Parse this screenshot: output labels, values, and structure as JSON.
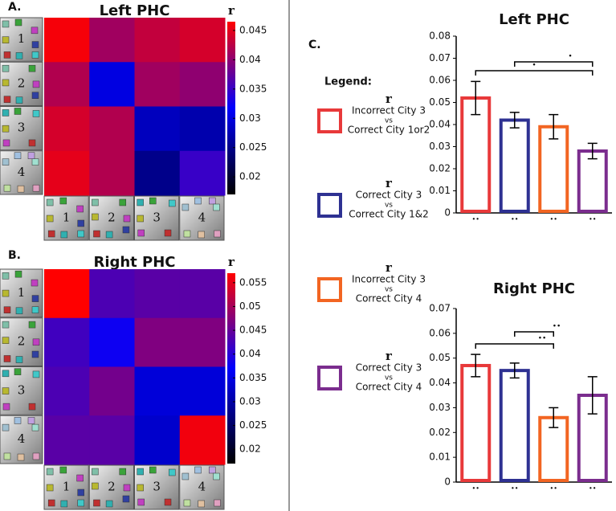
{
  "panel_labels": [
    "A.",
    "B.",
    "C."
  ],
  "legend": {
    "title": "Legend:",
    "entries": [
      {
        "symbol": "r",
        "lines": [
          "Incorrect City 3",
          "vs",
          "Correct City 1or2"
        ],
        "color": "#e8393a"
      },
      {
        "symbol": "r",
        "lines": [
          "Correct City 3",
          "vs",
          "Correct City 1&2"
        ],
        "color": "#2e3192"
      },
      {
        "symbol": "r",
        "lines": [
          "Incorrect City 3",
          "vs",
          "Correct City 4"
        ],
        "color": "#f26522"
      },
      {
        "symbol": "r",
        "lines": [
          "Correct City 3",
          "vs",
          "Correct City 4"
        ],
        "color": "#7b2d8e"
      }
    ]
  },
  "chart_data": [
    {
      "type": "heatmap",
      "title": "Left PHC",
      "rows": [
        "1",
        "2",
        "3",
        "4"
      ],
      "columns": [
        "1",
        "2",
        "3",
        "4"
      ],
      "values": [
        [
          0.046,
          0.041,
          0.043,
          0.044
        ],
        [
          0.042,
          0.03,
          0.041,
          0.04
        ],
        [
          0.044,
          0.042,
          0.028,
          0.027
        ],
        [
          0.045,
          0.042,
          0.025,
          0.035
        ]
      ],
      "colorbar_label": "r",
      "zlim": [
        0.017,
        0.0465
      ],
      "zticks": [
        0.02,
        0.025,
        0.03,
        0.035,
        0.04,
        0.045
      ],
      "colormap": [
        "#000000",
        "#0000ff",
        "#ff0000"
      ]
    },
    {
      "type": "heatmap",
      "title": "Right PHC",
      "rows": [
        "1",
        "2",
        "3",
        "4"
      ],
      "columns": [
        "1",
        "2",
        "3",
        "4"
      ],
      "values": [
        [
          0.057,
          0.043,
          0.044,
          0.044
        ],
        [
          0.042,
          0.038,
          0.047,
          0.047
        ],
        [
          0.043,
          0.046,
          0.034,
          0.034
        ],
        [
          0.044,
          0.044,
          0.033,
          0.056
        ]
      ],
      "colorbar_label": "r",
      "zlim": [
        0.017,
        0.057
      ],
      "zticks": [
        0.02,
        0.025,
        0.03,
        0.035,
        0.04,
        0.045,
        0.05,
        0.055
      ],
      "colormap": [
        "#000000",
        "#0000ff",
        "#ff0000"
      ]
    },
    {
      "type": "bar",
      "title": "Left PHC",
      "categories": [
        "••",
        "••",
        "••",
        "••"
      ],
      "values": [
        0.052,
        0.042,
        0.039,
        0.028
      ],
      "errors": [
        0.0075,
        0.0035,
        0.0055,
        0.0035
      ],
      "colors": [
        "#e8393a",
        "#2e3192",
        "#f26522",
        "#7b2d8e"
      ],
      "ylim": [
        0,
        0.08
      ],
      "yticks": [
        0,
        0.01,
        0.02,
        0.03,
        0.04,
        0.05,
        0.06,
        0.07,
        0.08
      ],
      "annotations": [
        {
          "label": "•"
        },
        {
          "label": "•"
        }
      ]
    },
    {
      "type": "bar",
      "title": "Right PHC",
      "categories": [
        "••",
        "••",
        "••",
        "••"
      ],
      "values": [
        0.047,
        0.045,
        0.026,
        0.035
      ],
      "errors": [
        0.0045,
        0.003,
        0.004,
        0.0075
      ],
      "colors": [
        "#e8393a",
        "#2e3192",
        "#f26522",
        "#7b2d8e"
      ],
      "ylim": [
        0,
        0.07
      ],
      "yticks": [
        0,
        0.01,
        0.02,
        0.03,
        0.04,
        0.05,
        0.06,
        0.07
      ],
      "annotations": [
        {
          "label": "••"
        },
        {
          "label": "••"
        }
      ]
    }
  ]
}
